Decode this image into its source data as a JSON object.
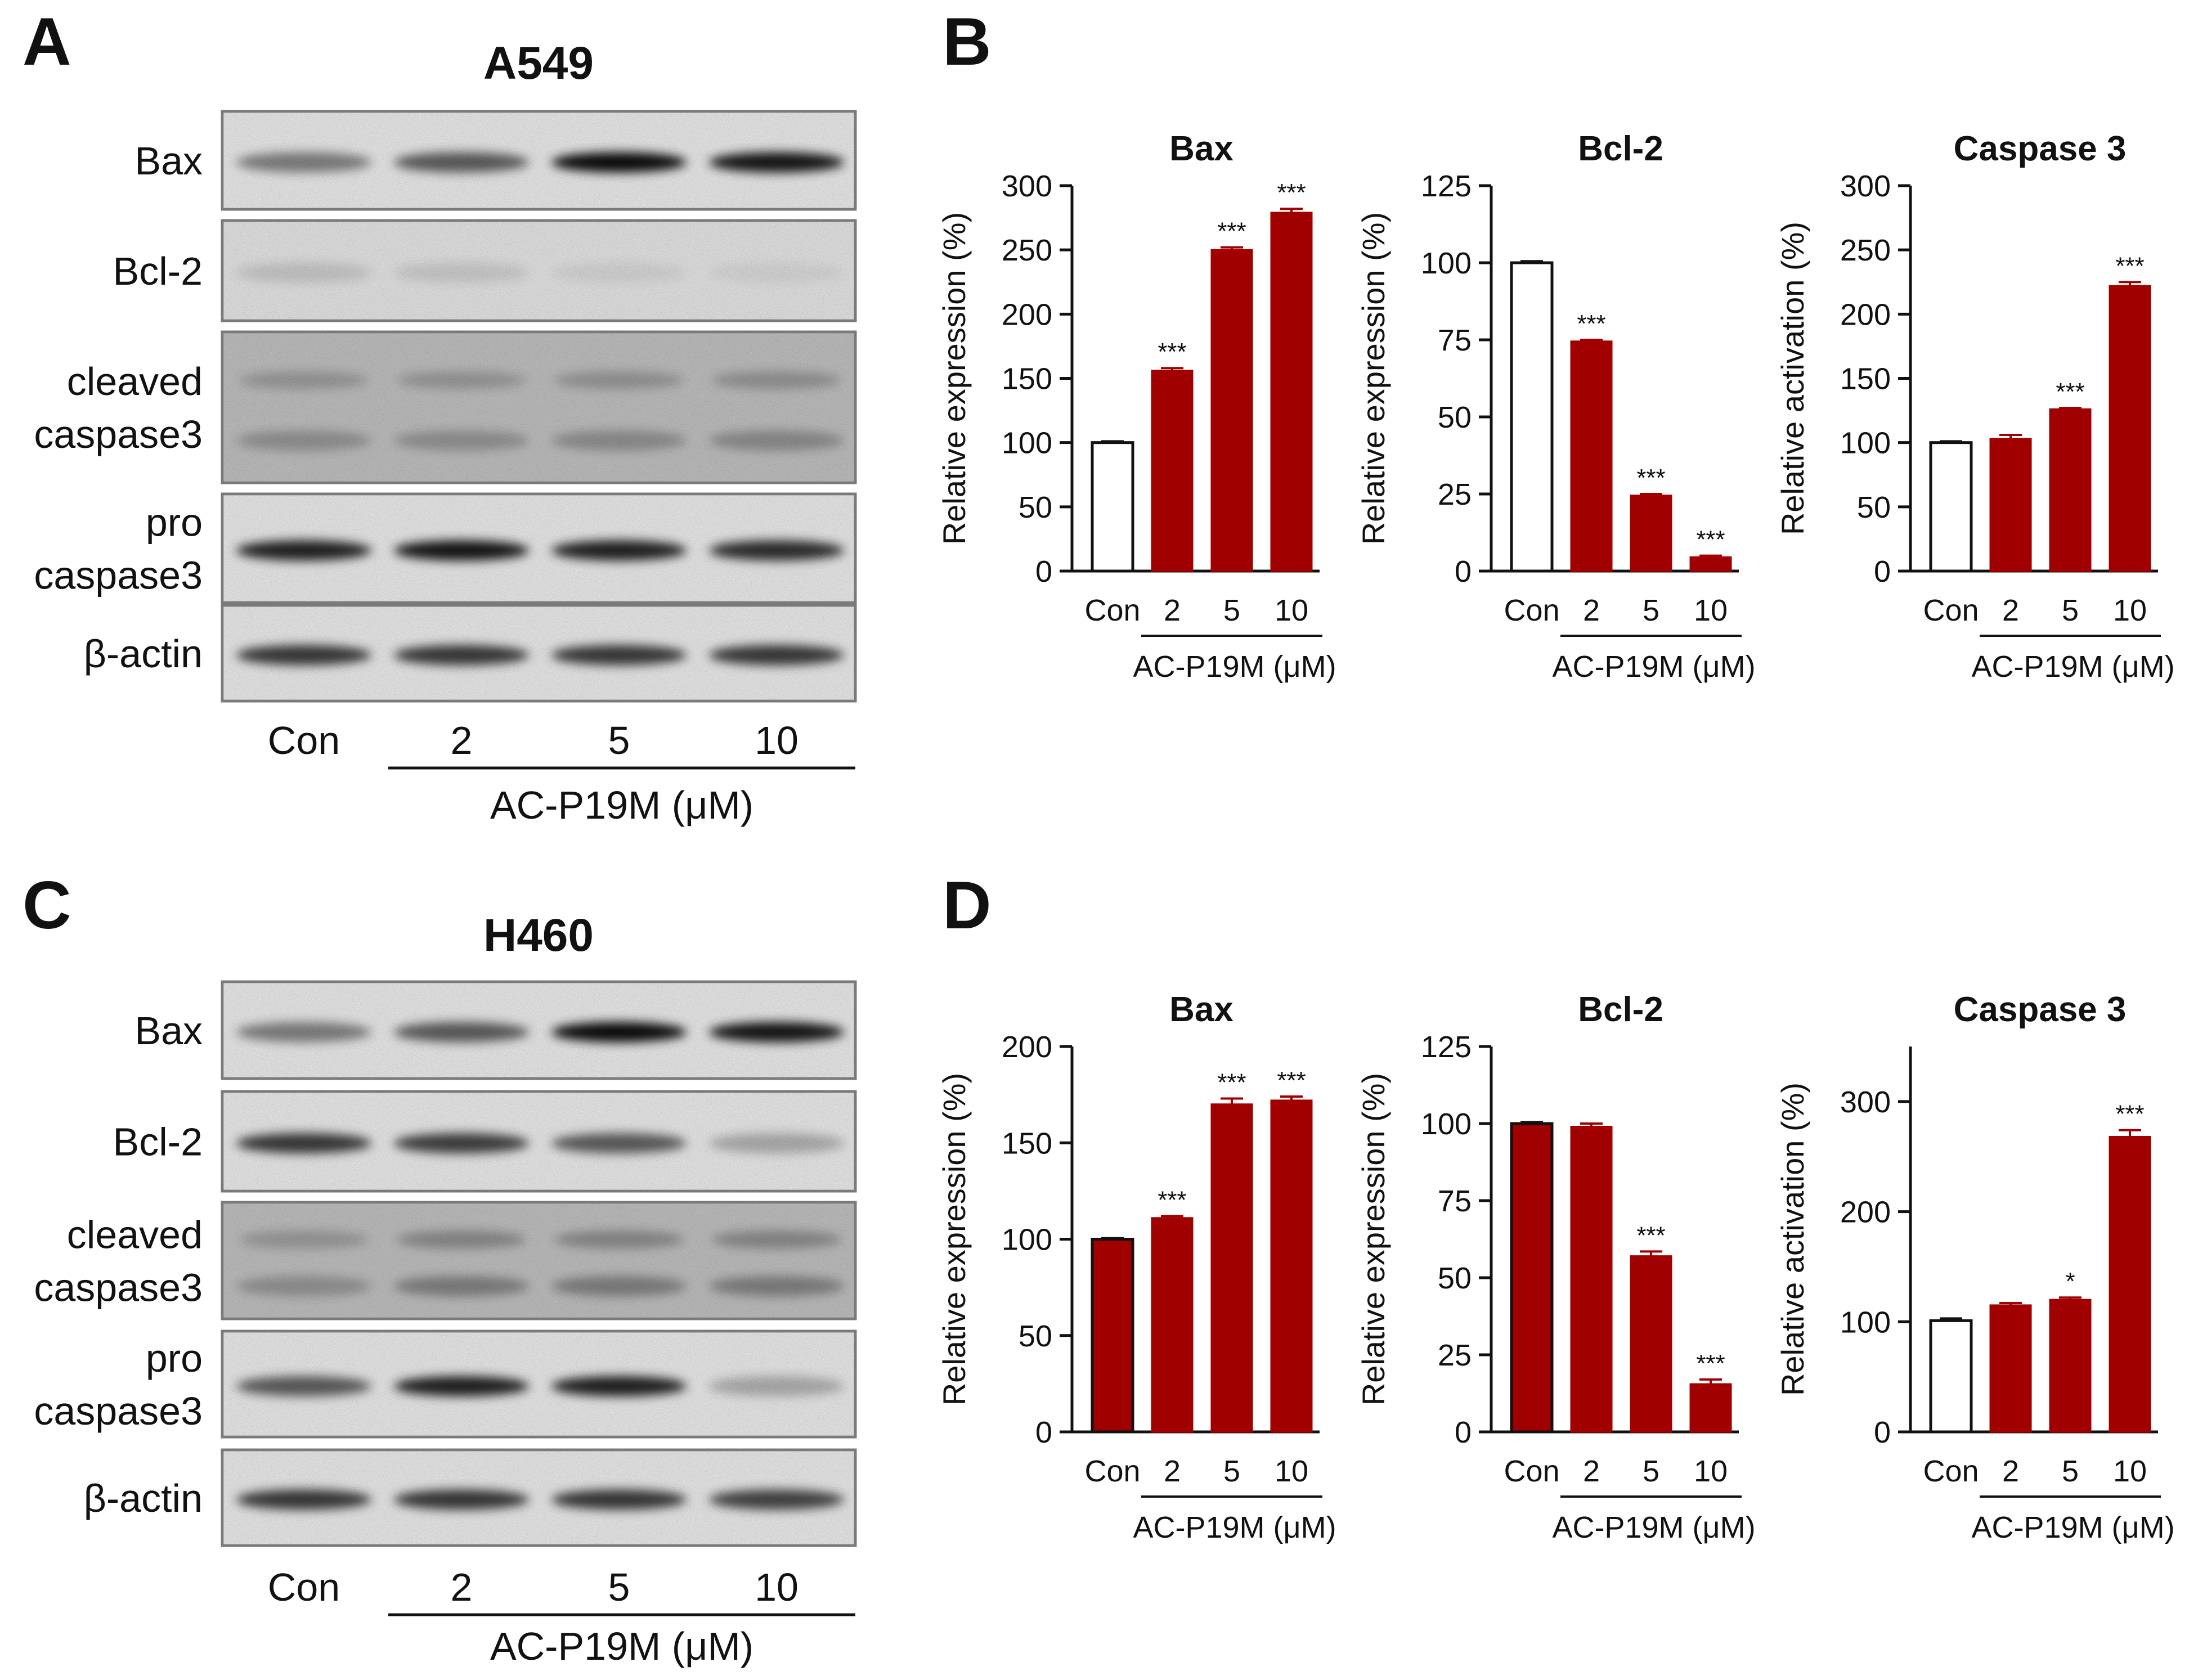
{
  "panels": {
    "A": {
      "letter": "A",
      "cell_line": "A549"
    },
    "B": {
      "letter": "B"
    },
    "C": {
      "letter": "C",
      "cell_line": "H460"
    },
    "D": {
      "letter": "D"
    }
  },
  "blot": {
    "rows": [
      "Bax",
      "Bcl-2",
      "cleaved\ncaspase3",
      "pro\ncaspase3",
      "β-actin"
    ],
    "lanes": [
      "Con",
      "2",
      "5",
      "10"
    ],
    "treatment": "AC-P19M (μM)",
    "intensity": {
      "A549": [
        [
          0.45,
          0.6,
          0.95,
          0.9
        ],
        [
          0.12,
          0.1,
          0.06,
          0.05
        ],
        [
          0.35,
          0.35,
          0.38,
          0.4
        ],
        [
          0.85,
          0.9,
          0.85,
          0.8
        ],
        [
          0.75,
          0.75,
          0.75,
          0.75
        ]
      ],
      "H460": [
        [
          0.45,
          0.6,
          0.95,
          0.9
        ],
        [
          0.75,
          0.72,
          0.6,
          0.25
        ],
        [
          0.35,
          0.5,
          0.5,
          0.5
        ],
        [
          0.6,
          0.85,
          0.85,
          0.25
        ],
        [
          0.75,
          0.75,
          0.75,
          0.7
        ]
      ]
    }
  },
  "chart_data": [
    {
      "panel": "B",
      "type": "bar",
      "title": "Bax",
      "ylabel": "Relative expression (%)",
      "xlabel": "AC-P19M (μM)",
      "categories": [
        "Con",
        "2",
        "5",
        "10"
      ],
      "values": [
        100,
        156,
        250,
        279
      ],
      "errors": [
        1,
        2,
        2,
        3
      ],
      "significance": [
        "",
        "***",
        "***",
        "***"
      ],
      "ylim": [
        0,
        300
      ],
      "yticks": [
        0,
        50,
        100,
        150,
        200,
        250,
        300
      ],
      "control_style": "hollow",
      "colors": {
        "bar": "#A00000",
        "control_fill": "#ffffff"
      }
    },
    {
      "panel": "B",
      "type": "bar",
      "title": "Bcl-2",
      "ylabel": "Relative expression (%)",
      "xlabel": "AC-P19M (μM)",
      "categories": [
        "Con",
        "2",
        "5",
        "10"
      ],
      "values": [
        100,
        74.5,
        24.5,
        4.5
      ],
      "errors": [
        0.5,
        0.5,
        0.5,
        0.5
      ],
      "significance": [
        "",
        "***",
        "***",
        "***"
      ],
      "ylim": [
        0,
        125
      ],
      "yticks": [
        0,
        25,
        50,
        75,
        100,
        125
      ],
      "control_style": "hollow",
      "colors": {
        "bar": "#A00000",
        "control_fill": "#ffffff"
      }
    },
    {
      "panel": "B",
      "type": "bar",
      "title": "Caspase 3",
      "ylabel": "Relative activation (%)",
      "xlabel": "AC-P19M (μM)",
      "categories": [
        "Con",
        "2",
        "5",
        "10"
      ],
      "values": [
        100,
        103,
        126,
        222
      ],
      "errors": [
        1,
        3,
        1,
        3
      ],
      "significance": [
        "",
        "",
        "***",
        "***"
      ],
      "ylim": [
        0,
        300
      ],
      "yticks": [
        0,
        50,
        100,
        150,
        200,
        250,
        300
      ],
      "control_style": "hollow",
      "colors": {
        "bar": "#A00000",
        "control_fill": "#ffffff"
      }
    },
    {
      "panel": "D",
      "type": "bar",
      "title": "Bax",
      "ylabel": "Relative expression (%)",
      "xlabel": "AC-P19M (μM)",
      "categories": [
        "Con",
        "2",
        "5",
        "10"
      ],
      "values": [
        100,
        111,
        170,
        172
      ],
      "errors": [
        0.5,
        1,
        3,
        2
      ],
      "significance": [
        "",
        "***",
        "***",
        "***"
      ],
      "ylim": [
        0,
        200
      ],
      "yticks": [
        0,
        50,
        100,
        150,
        200
      ],
      "control_style": "filled",
      "colors": {
        "bar": "#A00000",
        "control_fill": "#A00000"
      }
    },
    {
      "panel": "D",
      "type": "bar",
      "title": "Bcl-2",
      "ylabel": "Relative expression (%)",
      "xlabel": "AC-P19M (μM)",
      "categories": [
        "Con",
        "2",
        "5",
        "10"
      ],
      "values": [
        100,
        99,
        57,
        15.5
      ],
      "errors": [
        0.5,
        1,
        1.5,
        1.5
      ],
      "significance": [
        "",
        "",
        "***",
        "***"
      ],
      "ylim": [
        0,
        125
      ],
      "yticks": [
        0,
        25,
        50,
        75,
        100,
        125
      ],
      "control_style": "filled",
      "colors": {
        "bar": "#A00000",
        "control_fill": "#A00000"
      }
    },
    {
      "panel": "D",
      "type": "bar",
      "title": "Caspase 3",
      "ylabel": "Relative activation (%)",
      "xlabel": "AC-P19M (μM)",
      "categories": [
        "Con",
        "2",
        "5",
        "10"
      ],
      "values": [
        101,
        115,
        120,
        268
      ],
      "errors": [
        2,
        2,
        2,
        6
      ],
      "significance": [
        "",
        "",
        "*",
        "***"
      ],
      "ylim": [
        0,
        350
      ],
      "yticks": [
        0,
        100,
        200,
        300
      ],
      "control_style": "hollow",
      "colors": {
        "bar": "#A00000",
        "control_fill": "#ffffff"
      }
    }
  ]
}
